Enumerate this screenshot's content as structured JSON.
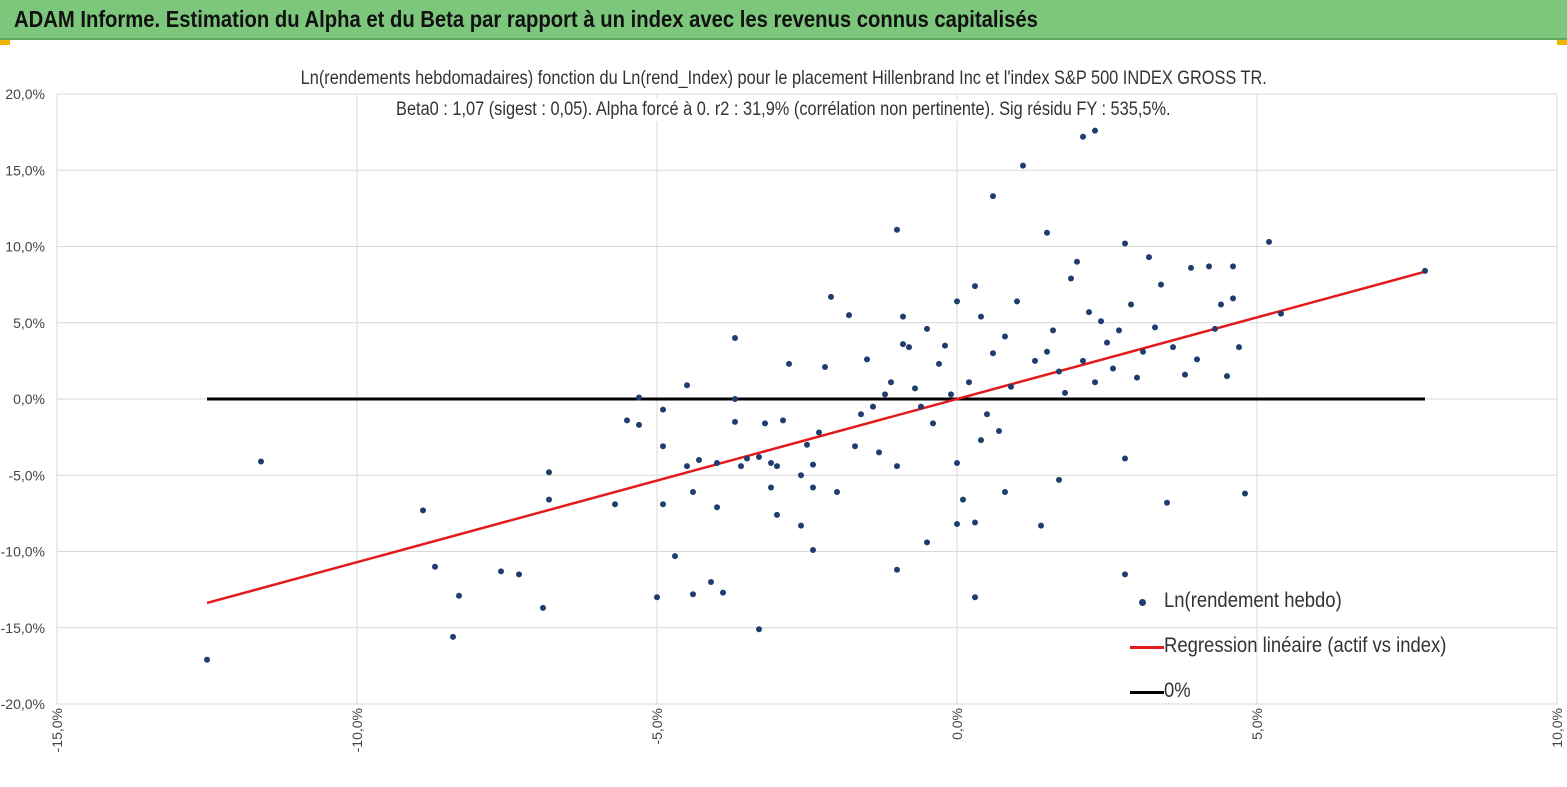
{
  "header": {
    "title": "ADAM Informe. Estimation du Alpha et du Beta par rapport à un index avec les revenus connus capitalisés",
    "background": "#7dc77d"
  },
  "chart_data": {
    "type": "scatter",
    "title_line1": "Ln(rendements hebdomadaires) fonction du Ln(rend_Index) pour le placement Hillenbrand Inc et l'index S&P 500 INDEX GROSS TR.",
    "title_line2": "Beta0 : 1,07 (sigest : 0,05). Alpha forcé à 0. r2 : 31,9% (corrélation non pertinente). Sig résidu FY : 535,5%.",
    "xlim": [
      -15,
      10
    ],
    "ylim": [
      -20,
      20
    ],
    "x_ticks": [
      -15,
      -10,
      -5,
      0,
      5,
      10
    ],
    "y_ticks": [
      20,
      15,
      10,
      5,
      0,
      -5,
      -10,
      -15,
      -20
    ],
    "x_tick_labels": [
      "-15,0%",
      "-10,0%",
      "-5,0%",
      "0,0%",
      "5,0%",
      "10,0%"
    ],
    "y_tick_labels": [
      "20,0%",
      "15,0%",
      "10,0%",
      "5,0%",
      "0,0%",
      "-5,0%",
      "-10,0%",
      "-15,0%",
      "-20,0%"
    ],
    "grid": true,
    "legend_position": "bottom-right",
    "series": [
      {
        "name": "Ln(rendement hebdo)",
        "kind": "scatter",
        "color": "#1f3d6e",
        "points": [
          [
            -12.5,
            -17.1
          ],
          [
            -11.6,
            -4.1
          ],
          [
            -8.9,
            -7.3
          ],
          [
            -8.7,
            -11.0
          ],
          [
            -8.4,
            -15.6
          ],
          [
            -8.3,
            -12.9
          ],
          [
            -7.6,
            -11.3
          ],
          [
            -7.3,
            -11.5
          ],
          [
            -6.9,
            -13.7
          ],
          [
            -6.8,
            -4.8
          ],
          [
            -6.8,
            -6.6
          ],
          [
            -5.7,
            -6.9
          ],
          [
            -5.5,
            -1.4
          ],
          [
            -5.3,
            0.1
          ],
          [
            -5.3,
            -1.7
          ],
          [
            -5.0,
            -13.0
          ],
          [
            -4.9,
            -6.9
          ],
          [
            -4.9,
            -3.1
          ],
          [
            -4.9,
            -0.7
          ],
          [
            -4.7,
            -10.3
          ],
          [
            -4.5,
            -4.4
          ],
          [
            -4.5,
            0.9
          ],
          [
            -4.4,
            -12.8
          ],
          [
            -4.4,
            -6.1
          ],
          [
            -4.3,
            -4.0
          ],
          [
            -4.1,
            -12.0
          ],
          [
            -4.0,
            -4.2
          ],
          [
            -4.0,
            -7.1
          ],
          [
            -3.9,
            -12.7
          ],
          [
            -3.6,
            -4.4
          ],
          [
            -3.5,
            -3.9
          ],
          [
            -3.7,
            0.0
          ],
          [
            -3.7,
            -1.5
          ],
          [
            -3.7,
            4.0
          ],
          [
            -3.3,
            -3.8
          ],
          [
            -3.3,
            -15.1
          ],
          [
            -3.2,
            -1.6
          ],
          [
            -3.1,
            -4.2
          ],
          [
            -3.1,
            -5.8
          ],
          [
            -3.0,
            -7.6
          ],
          [
            -3.0,
            -4.4
          ],
          [
            -2.9,
            -1.4
          ],
          [
            -2.8,
            2.3
          ],
          [
            -2.6,
            -8.3
          ],
          [
            -2.6,
            -5.0
          ],
          [
            -2.5,
            -3.0
          ],
          [
            -2.4,
            -4.3
          ],
          [
            -2.4,
            -9.9
          ],
          [
            -2.4,
            -5.8
          ],
          [
            -2.3,
            -2.2
          ],
          [
            -2.2,
            2.1
          ],
          [
            -2.1,
            6.7
          ],
          [
            -2.0,
            -6.1
          ],
          [
            -1.8,
            5.5
          ],
          [
            -1.7,
            -3.1
          ],
          [
            -1.6,
            -1.0
          ],
          [
            -1.5,
            2.6
          ],
          [
            -1.4,
            -0.5
          ],
          [
            -1.3,
            -3.5
          ],
          [
            -1.2,
            0.3
          ],
          [
            -1.1,
            1.1
          ],
          [
            -1.0,
            -4.4
          ],
          [
            -0.9,
            5.4
          ],
          [
            -0.9,
            3.6
          ],
          [
            -0.8,
            3.4
          ],
          [
            -0.7,
            0.7
          ],
          [
            -0.6,
            -0.5
          ],
          [
            -0.5,
            4.6
          ],
          [
            -0.4,
            -1.6
          ],
          [
            -0.3,
            2.3
          ],
          [
            -0.2,
            3.5
          ],
          [
            -0.1,
            0.3
          ],
          [
            0.0,
            6.4
          ],
          [
            0.0,
            -4.2
          ],
          [
            0.2,
            1.1
          ],
          [
            0.3,
            7.4
          ],
          [
            0.4,
            5.4
          ],
          [
            0.5,
            -1.0
          ],
          [
            0.6,
            3.0
          ],
          [
            0.7,
            -2.1
          ],
          [
            0.8,
            4.1
          ],
          [
            0.9,
            0.8
          ],
          [
            1.0,
            6.4
          ],
          [
            1.1,
            15.3
          ],
          [
            1.3,
            2.5
          ],
          [
            1.4,
            -8.3
          ],
          [
            1.5,
            3.1
          ],
          [
            1.6,
            4.5
          ],
          [
            1.7,
            1.8
          ],
          [
            1.8,
            0.4
          ],
          [
            1.9,
            7.9
          ],
          [
            2.0,
            9.0
          ],
          [
            2.1,
            2.5
          ],
          [
            2.2,
            5.7
          ],
          [
            2.3,
            1.1
          ],
          [
            2.4,
            5.1
          ],
          [
            2.5,
            3.7
          ],
          [
            2.6,
            2.0
          ],
          [
            2.7,
            4.5
          ],
          [
            2.8,
            -3.9
          ],
          [
            2.9,
            6.2
          ],
          [
            3.0,
            1.4
          ],
          [
            3.1,
            3.1
          ],
          [
            3.2,
            9.3
          ],
          [
            3.3,
            4.7
          ],
          [
            3.4,
            7.5
          ],
          [
            3.5,
            -6.8
          ],
          [
            3.6,
            3.4
          ],
          [
            3.8,
            1.6
          ],
          [
            3.9,
            8.6
          ],
          [
            4.0,
            2.6
          ],
          [
            4.2,
            8.7
          ],
          [
            4.3,
            4.6
          ],
          [
            4.4,
            6.2
          ],
          [
            4.5,
            1.5
          ],
          [
            4.6,
            6.6
          ],
          [
            4.6,
            8.7
          ],
          [
            4.7,
            3.4
          ],
          [
            4.8,
            -6.2
          ],
          [
            5.2,
            10.3
          ],
          [
            5.4,
            5.6
          ],
          [
            7.8,
            8.4
          ],
          [
            -1.0,
            11.1
          ],
          [
            0.6,
            13.3
          ],
          [
            1.5,
            10.9
          ],
          [
            2.3,
            17.6
          ],
          [
            2.1,
            17.2
          ],
          [
            2.8,
            10.2
          ],
          [
            2.8,
            -11.5
          ],
          [
            0.3,
            -13.0
          ],
          [
            -1.0,
            -11.2
          ],
          [
            -0.5,
            -9.4
          ],
          [
            0.0,
            -8.2
          ],
          [
            0.3,
            -8.1
          ],
          [
            0.1,
            -6.6
          ],
          [
            0.8,
            -6.1
          ],
          [
            1.7,
            -5.3
          ],
          [
            0.4,
            -2.7
          ]
        ]
      },
      {
        "name": "Regression linéaire (actif vs index)",
        "kind": "line",
        "color": "#e31a1c",
        "slope": 1.07,
        "x_range": [
          -12.5,
          7.8
        ]
      },
      {
        "name": "0%",
        "kind": "line",
        "color": "#000000",
        "y_value": 0,
        "x_range": [
          -12.5,
          7.8
        ]
      }
    ]
  }
}
